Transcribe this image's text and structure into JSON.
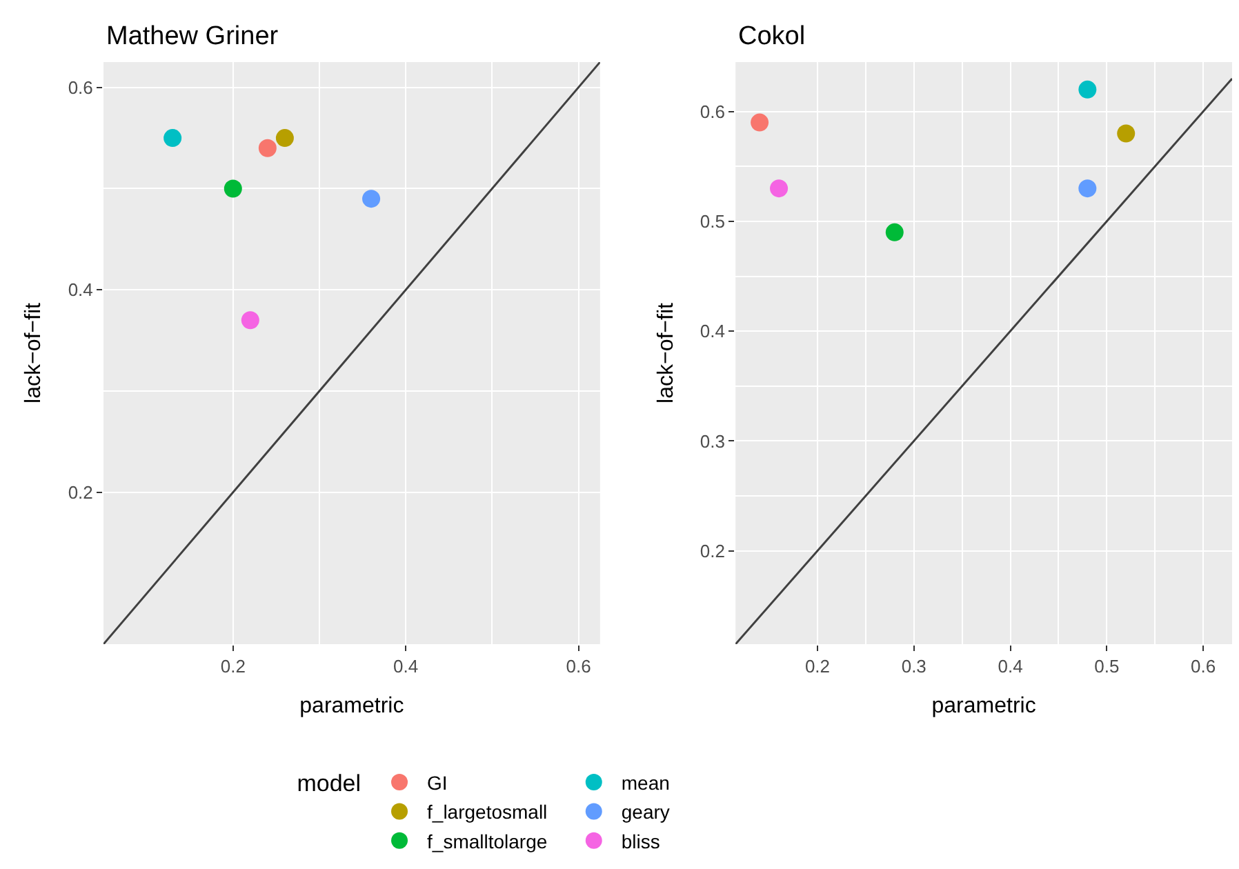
{
  "chart_data": [
    {
      "type": "scatter",
      "title": "Mathew Griner",
      "xlabel": "parametric",
      "ylabel": "lack−of−fit",
      "legend_title": "model",
      "legend": "bottom",
      "grid": true,
      "marker": "circle",
      "xlim": [
        0.05,
        0.625
      ],
      "ylim": [
        0.05,
        0.625
      ],
      "xticks": [
        0.2,
        0.4,
        0.6
      ],
      "yticks": [
        0.2,
        0.4,
        0.6
      ],
      "series": [
        {
          "name": "GI",
          "color": "#f8766d",
          "x": [
            0.24
          ],
          "values": [
            0.54
          ]
        },
        {
          "name": "f_largetosmall",
          "color": "#b79f00",
          "x": [
            0.26
          ],
          "values": [
            0.55
          ]
        },
        {
          "name": "f_smalltolarge",
          "color": "#00ba38",
          "x": [
            0.2
          ],
          "values": [
            0.5
          ]
        },
        {
          "name": "mean",
          "color": "#00bfc4",
          "x": [
            0.13
          ],
          "values": [
            0.55
          ]
        },
        {
          "name": "geary",
          "color": "#619cff",
          "x": [
            0.36
          ],
          "values": [
            0.49
          ]
        },
        {
          "name": "bliss",
          "color": "#f564e3",
          "x": [
            0.22
          ],
          "values": [
            0.37
          ]
        },
        {
          "type": "line",
          "marker": "none",
          "color": "#404040",
          "x": [
            0.05,
            0.625
          ],
          "values": [
            0.05,
            0.625
          ]
        }
      ]
    },
    {
      "type": "scatter",
      "title": "Cokol",
      "xlabel": "parametric",
      "ylabel": "lack−of−fit",
      "grid": true,
      "marker": "circle",
      "xlim": [
        0.115,
        0.63
      ],
      "ylim": [
        0.115,
        0.645
      ],
      "xticks": [
        0.2,
        0.3,
        0.4,
        0.5,
        0.6
      ],
      "yticks": [
        0.2,
        0.3,
        0.4,
        0.5,
        0.6
      ],
      "series": [
        {
          "color": "#f8766d",
          "x": [
            0.14
          ],
          "values": [
            0.59
          ]
        },
        {
          "color": "#b79f00",
          "x": [
            0.52
          ],
          "values": [
            0.58
          ]
        },
        {
          "color": "#00ba38",
          "x": [
            0.28
          ],
          "values": [
            0.49
          ]
        },
        {
          "color": "#00bfc4",
          "x": [
            0.48
          ],
          "values": [
            0.62
          ]
        },
        {
          "color": "#619cff",
          "x": [
            0.48
          ],
          "values": [
            0.53
          ]
        },
        {
          "color": "#f564e3",
          "x": [
            0.16
          ],
          "values": [
            0.53
          ]
        },
        {
          "type": "line",
          "marker": "none",
          "color": "#404040",
          "x": [
            0.115,
            0.63
          ],
          "values": [
            0.115,
            0.63
          ]
        }
      ]
    }
  ]
}
